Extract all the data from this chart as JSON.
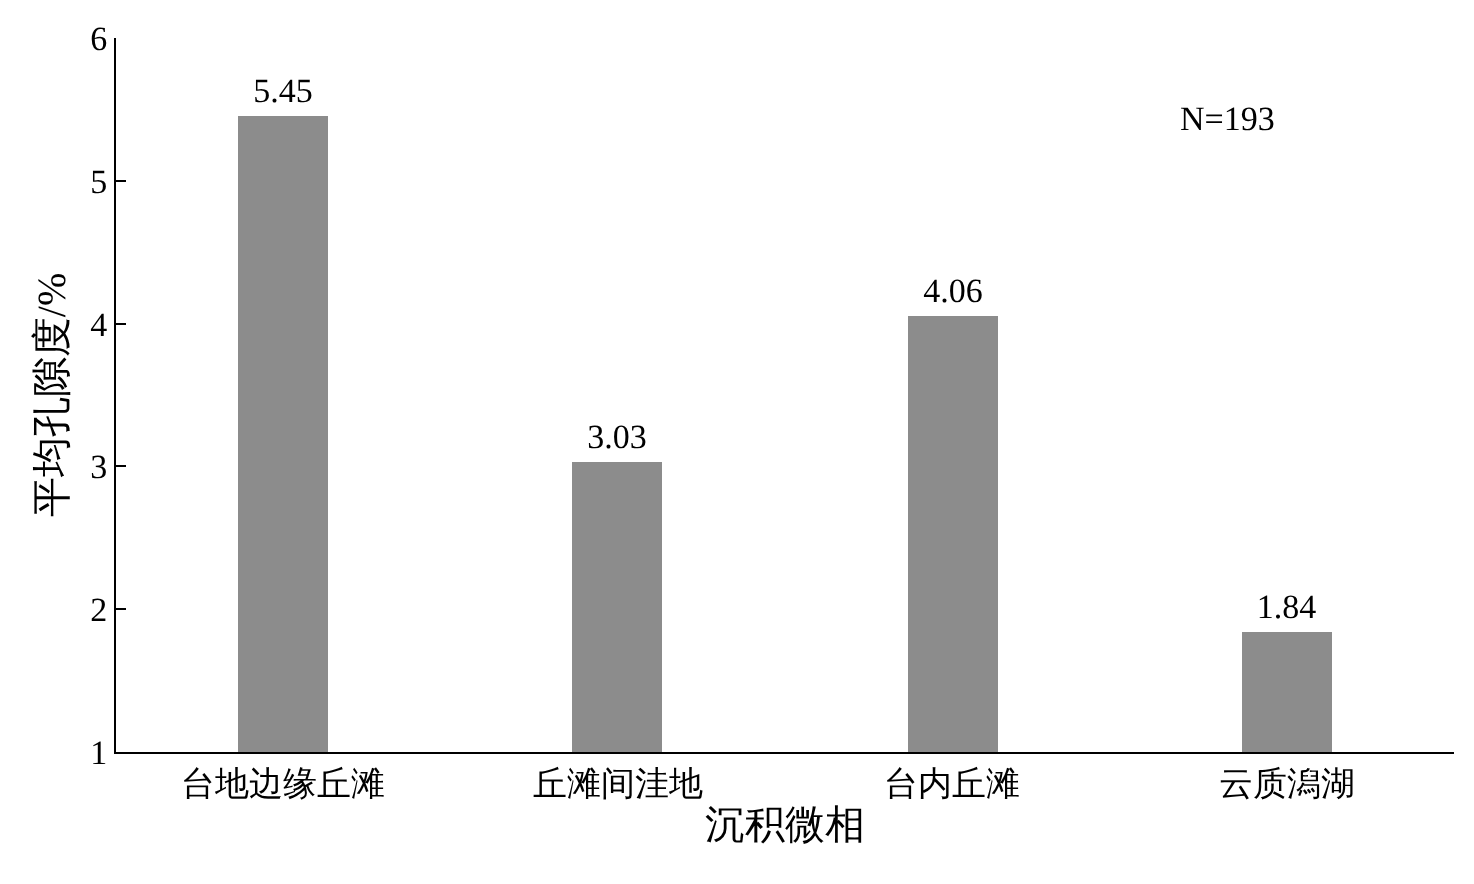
{
  "chart_data": {
    "type": "bar",
    "xlabel": "沉积微相",
    "ylabel": "平均孔隙度/%",
    "categories": [
      "台地边缘丘滩",
      "丘滩间洼地",
      "台内丘滩",
      "云质潟湖"
    ],
    "values": [
      5.45,
      3.03,
      4.06,
      1.84
    ],
    "color": "#8c8c8c",
    "ylim": [
      1,
      6
    ],
    "yticks": [
      1,
      2,
      3,
      4,
      5,
      6
    ],
    "legend": false,
    "data_labels": true,
    "annotations": [
      "N=193"
    ]
  }
}
